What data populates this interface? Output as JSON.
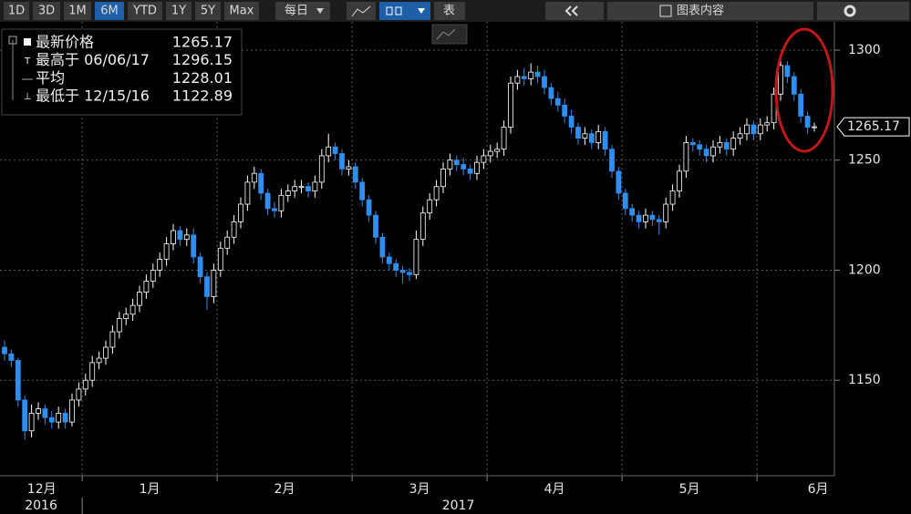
{
  "toolbar": {
    "ranges": [
      "1D",
      "3D",
      "1M",
      "6M",
      "YTD",
      "1Y",
      "5Y",
      "Max"
    ],
    "active_range": 3,
    "period": "每日",
    "table": "表",
    "chart_content": "图表内容"
  },
  "chart_data": {
    "type": "candlestick",
    "legend": [
      {
        "label": "最新价格",
        "value": 1265.17
      },
      {
        "label": "最高于 06/06/17",
        "value": 1296.15
      },
      {
        "label": "平均",
        "value": 1228.01
      },
      {
        "label": "最低于 12/15/16",
        "value": 1122.89
      }
    ],
    "last_price": 1265.17,
    "up_color": "#000000",
    "down_color": "#2f8ff0",
    "ylim": [
      1106.6,
      1311.6
    ],
    "yticks": [
      1150,
      1200,
      1250,
      1300
    ],
    "grid": true,
    "years": [
      "2016",
      "2017"
    ],
    "categories": [
      "12月",
      null,
      null,
      null,
      null,
      null,
      null,
      null,
      null,
      null,
      null,
      null,
      "1月",
      null,
      null,
      null,
      null,
      null,
      null,
      null,
      null,
      null,
      null,
      null,
      null,
      null,
      null,
      null,
      null,
      null,
      null,
      null,
      "2月",
      null,
      null,
      null,
      null,
      null,
      null,
      null,
      null,
      null,
      null,
      null,
      null,
      null,
      null,
      null,
      null,
      null,
      null,
      null,
      "3月",
      null,
      null,
      null,
      null,
      null,
      null,
      null,
      null,
      null,
      null,
      null,
      null,
      null,
      null,
      null,
      null,
      null,
      null,
      null,
      "4月",
      null,
      null,
      null,
      null,
      null,
      null,
      null,
      null,
      null,
      null,
      null,
      null,
      null,
      null,
      null,
      null,
      null,
      null,
      null,
      "5月",
      null,
      null,
      null,
      null,
      null,
      null,
      null,
      null,
      null,
      null,
      null,
      null,
      null,
      null,
      null,
      null,
      null,
      null,
      null,
      "6月",
      null,
      null,
      null,
      null,
      null,
      null,
      null,
      null
    ],
    "ohlc": [
      [
        1165,
        1168,
        1159,
        1162
      ],
      [
        1162,
        1164,
        1156,
        1159
      ],
      [
        1159,
        1160,
        1138,
        1141
      ],
      [
        1141,
        1143,
        1122.89,
        1127
      ],
      [
        1127,
        1139,
        1124,
        1135
      ],
      [
        1135,
        1140,
        1132,
        1137
      ],
      [
        1137,
        1139,
        1130,
        1133
      ],
      [
        1133,
        1136,
        1128,
        1131
      ],
      [
        1131,
        1138,
        1128,
        1135
      ],
      [
        1135,
        1137,
        1128,
        1131
      ],
      [
        1131,
        1144,
        1129,
        1141
      ],
      [
        1141,
        1149,
        1138,
        1146
      ],
      [
        1146,
        1153,
        1143,
        1150
      ],
      [
        1150,
        1161,
        1147,
        1158
      ],
      [
        1158,
        1163,
        1155,
        1160
      ],
      [
        1160,
        1168,
        1157,
        1165
      ],
      [
        1165,
        1175,
        1162,
        1172
      ],
      [
        1172,
        1181,
        1169,
        1178
      ],
      [
        1178,
        1183,
        1175,
        1180
      ],
      [
        1180,
        1187,
        1177,
        1184
      ],
      [
        1184,
        1193,
        1181,
        1190
      ],
      [
        1190,
        1198,
        1187,
        1195
      ],
      [
        1195,
        1203,
        1192,
        1200
      ],
      [
        1200,
        1208,
        1197,
        1205
      ],
      [
        1205,
        1215,
        1202,
        1212
      ],
      [
        1212,
        1221,
        1209,
        1218
      ],
      [
        1218,
        1220,
        1211,
        1214
      ],
      [
        1214,
        1219,
        1211,
        1216
      ],
      [
        1216,
        1219,
        1203,
        1206
      ],
      [
        1206,
        1208,
        1194,
        1197
      ],
      [
        1197,
        1199,
        1182,
        1188
      ],
      [
        1188,
        1203,
        1185,
        1200
      ],
      [
        1200,
        1213,
        1197,
        1210
      ],
      [
        1210,
        1218,
        1207,
        1215
      ],
      [
        1215,
        1225,
        1212,
        1222
      ],
      [
        1222,
        1233,
        1219,
        1230
      ],
      [
        1230,
        1243,
        1227,
        1240
      ],
      [
        1240,
        1247,
        1237,
        1244
      ],
      [
        1244,
        1246,
        1232,
        1235
      ],
      [
        1235,
        1237,
        1225,
        1228
      ],
      [
        1228,
        1231,
        1224,
        1227
      ],
      [
        1227,
        1237,
        1224,
        1234
      ],
      [
        1234,
        1239,
        1231,
        1236
      ],
      [
        1236,
        1241,
        1233,
        1238
      ],
      [
        1238,
        1241,
        1235,
        1238
      ],
      [
        1238,
        1240,
        1233,
        1236
      ],
      [
        1236,
        1243,
        1233,
        1240
      ],
      [
        1240,
        1255,
        1237,
        1252
      ],
      [
        1252,
        1262,
        1249,
        1256
      ],
      [
        1256,
        1258,
        1250,
        1253
      ],
      [
        1253,
        1255,
        1243,
        1246
      ],
      [
        1246,
        1250,
        1243,
        1247
      ],
      [
        1247,
        1249,
        1237,
        1240
      ],
      [
        1240,
        1242,
        1229,
        1232
      ],
      [
        1232,
        1234,
        1222,
        1225
      ],
      [
        1225,
        1227,
        1212,
        1215
      ],
      [
        1215,
        1217,
        1203,
        1206
      ],
      [
        1206,
        1208,
        1200,
        1203
      ],
      [
        1203,
        1205,
        1197,
        1200
      ],
      [
        1200,
        1202,
        1194,
        1199
      ],
      [
        1199,
        1201,
        1195,
        1198
      ],
      [
        1198,
        1218,
        1196,
        1214
      ],
      [
        1214,
        1229,
        1211,
        1226
      ],
      [
        1226,
        1235,
        1223,
        1232
      ],
      [
        1232,
        1241,
        1229,
        1238
      ],
      [
        1238,
        1249,
        1235,
        1246
      ],
      [
        1246,
        1253,
        1243,
        1250
      ],
      [
        1250,
        1252,
        1245,
        1248
      ],
      [
        1248,
        1251,
        1243,
        1246
      ],
      [
        1246,
        1248,
        1241,
        1244
      ],
      [
        1244,
        1252,
        1241,
        1249
      ],
      [
        1249,
        1255,
        1246,
        1252
      ],
      [
        1252,
        1257,
        1249,
        1254
      ],
      [
        1254,
        1258,
        1251,
        1255
      ],
      [
        1255,
        1268,
        1252,
        1265
      ],
      [
        1265,
        1288,
        1262,
        1285
      ],
      [
        1285,
        1291,
        1282,
        1288
      ],
      [
        1288,
        1292,
        1284,
        1287
      ],
      [
        1287,
        1294,
        1284,
        1290
      ],
      [
        1290,
        1293,
        1285,
        1288
      ],
      [
        1288,
        1291,
        1280,
        1283
      ],
      [
        1283,
        1285,
        1275,
        1278
      ],
      [
        1278,
        1281,
        1272,
        1275
      ],
      [
        1275,
        1278,
        1267,
        1270
      ],
      [
        1270,
        1273,
        1262,
        1265
      ],
      [
        1265,
        1267,
        1257,
        1260
      ],
      [
        1260,
        1265,
        1257,
        1262
      ],
      [
        1262,
        1264,
        1255,
        1258
      ],
      [
        1258,
        1266,
        1255,
        1263
      ],
      [
        1263,
        1265,
        1252,
        1255
      ],
      [
        1255,
        1257,
        1242,
        1245
      ],
      [
        1245,
        1247,
        1232,
        1235
      ],
      [
        1235,
        1237,
        1225,
        1228
      ],
      [
        1228,
        1230,
        1222,
        1225
      ],
      [
        1225,
        1227,
        1219,
        1222
      ],
      [
        1222,
        1228,
        1219,
        1225
      ],
      [
        1225,
        1227,
        1220,
        1223
      ],
      [
        1223,
        1225,
        1216,
        1222
      ],
      [
        1222,
        1233,
        1219,
        1230
      ],
      [
        1230,
        1239,
        1227,
        1236
      ],
      [
        1236,
        1248,
        1233,
        1245
      ],
      [
        1245,
        1261,
        1242,
        1258
      ],
      [
        1258,
        1260,
        1254,
        1257
      ],
      [
        1257,
        1259,
        1252,
        1255
      ],
      [
        1255,
        1257,
        1249,
        1252
      ],
      [
        1252,
        1259,
        1249,
        1256
      ],
      [
        1256,
        1261,
        1253,
        1258
      ],
      [
        1258,
        1260,
        1252,
        1255
      ],
      [
        1255,
        1263,
        1252,
        1260
      ],
      [
        1260,
        1265,
        1257,
        1262
      ],
      [
        1262,
        1269,
        1259,
        1266
      ],
      [
        1266,
        1268,
        1259,
        1262
      ],
      [
        1262,
        1269,
        1259,
        1266
      ],
      [
        1266,
        1270,
        1263,
        1267
      ],
      [
        1267,
        1283,
        1264,
        1280
      ],
      [
        1280,
        1296.15,
        1277,
        1293
      ],
      [
        1293,
        1295,
        1285,
        1288
      ],
      [
        1288,
        1290,
        1277,
        1280
      ],
      [
        1280,
        1282,
        1267,
        1270
      ],
      [
        1270,
        1272,
        1262,
        1265
      ],
      [
        1265,
        1267,
        1263,
        1265.17
      ]
    ]
  }
}
